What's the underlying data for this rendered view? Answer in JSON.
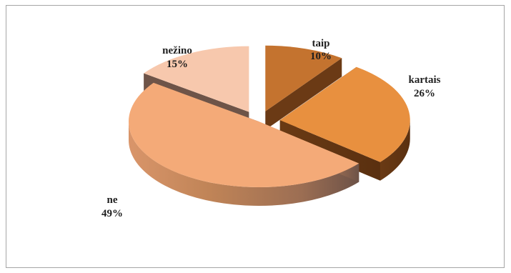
{
  "chart_data": {
    "type": "pie",
    "title": "",
    "legend": "none",
    "style": "3d-exploded",
    "categories": [
      "taip",
      "kartais",
      "ne",
      "nežino"
    ],
    "values": [
      10,
      26,
      49,
      15
    ],
    "value_labels": [
      "10%",
      "26%",
      "49%",
      "15%"
    ],
    "colors": [
      "#c4732f",
      "#e8903f",
      "#f4aa78",
      "#f7c8ad"
    ]
  }
}
